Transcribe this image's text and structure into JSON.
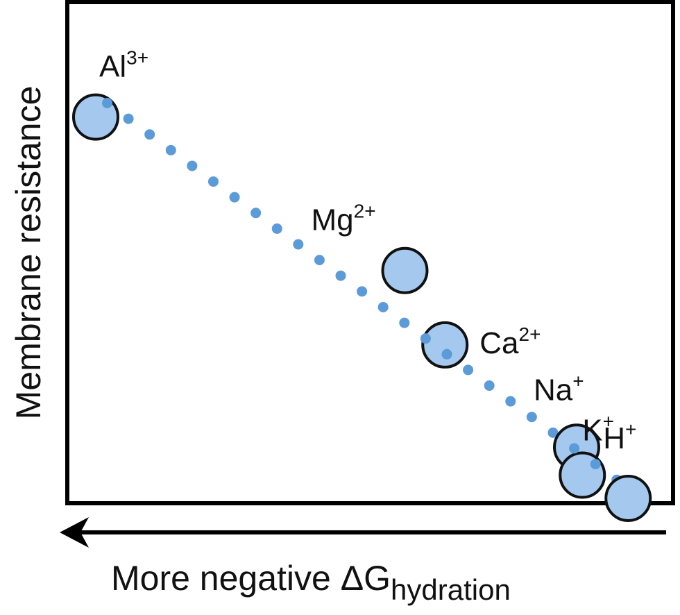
{
  "chart_data": {
    "type": "scatter",
    "title": "",
    "ylabel": "Membrane resistance",
    "xlabel": {
      "main": "More negative ΔG",
      "subscript": "hydration"
    },
    "x_direction": "increasing-left",
    "points": [
      {
        "ion": "Al",
        "charge": "3+",
        "x": 0.04,
        "y": 0.82
      },
      {
        "ion": "Mg",
        "charge": "2+",
        "x": 0.58,
        "y": 0.49
      },
      {
        "ion": "Ca",
        "charge": "2+",
        "x": 0.65,
        "y": 0.33
      },
      {
        "ion": "Na",
        "charge": "+",
        "x": 0.88,
        "y": 0.11
      },
      {
        "ion": "K",
        "charge": "+",
        "x": 0.89,
        "y": 0.05
      },
      {
        "ion": "H",
        "charge": "+",
        "x": 0.97,
        "y": 0.0
      }
    ],
    "trend_line": {
      "style": "dotted",
      "from": {
        "x": 0.06,
        "y": 0.85
      },
      "to": {
        "x": 0.95,
        "y": 0.04
      }
    },
    "colors": {
      "marker_fill": "#a4c8ee",
      "marker_edge": "#111111",
      "trend": "#5b9bd8",
      "frame": "#000000"
    },
    "grid": false,
    "legend": "none"
  }
}
